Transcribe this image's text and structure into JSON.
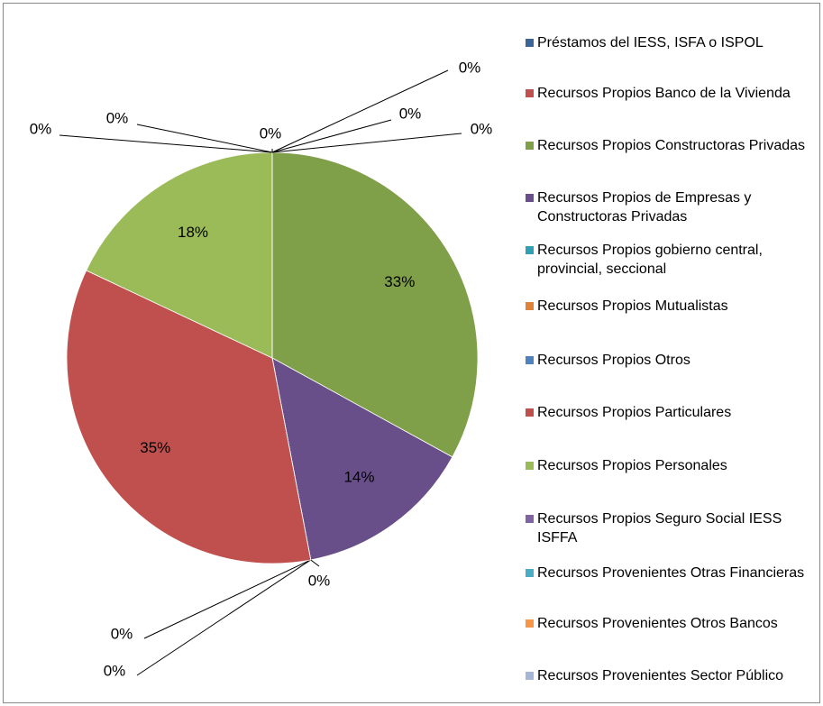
{
  "chart_data": {
    "type": "pie",
    "categories": [
      "Préstamos del IESS, ISFA o ISPOL",
      "Recursos Propios Banco de la Vivienda",
      "Recursos Propios Constructoras Privadas",
      "Recursos Propios de Empresas y Constructoras Privadas",
      "Recursos Propios gobierno central, provincial, seccional",
      "Recursos Propios Mutualistas",
      "Recursos Propios Otros",
      "Recursos Propios Particulares",
      "Recursos Propios Personales",
      "Recursos Propios Seguro Social IESS ISFFA",
      "Recursos Provenientes Otras Financieras",
      "Recursos Provenientes Otros Bancos",
      "Recursos Provenientes Sector Público"
    ],
    "values": [
      0,
      0,
      33,
      14,
      0,
      0,
      0,
      35,
      18,
      0,
      0,
      0,
      0
    ],
    "value_labels": [
      "0%",
      "0%",
      "33%",
      "14%",
      "0%",
      "0%",
      "0%",
      "35%",
      "18%",
      "0%",
      "0%",
      "0%",
      "0%"
    ],
    "colors": [
      "#3c6496",
      "#c0504d",
      "#7f9f48",
      "#694f8a",
      "#31a0b4",
      "#e0823a",
      "#4f81bd",
      "#c0504d",
      "#9bbb59",
      "#8064a2",
      "#4bacc6",
      "#f79646",
      "#a5b6d6"
    ],
    "legend": "right"
  }
}
